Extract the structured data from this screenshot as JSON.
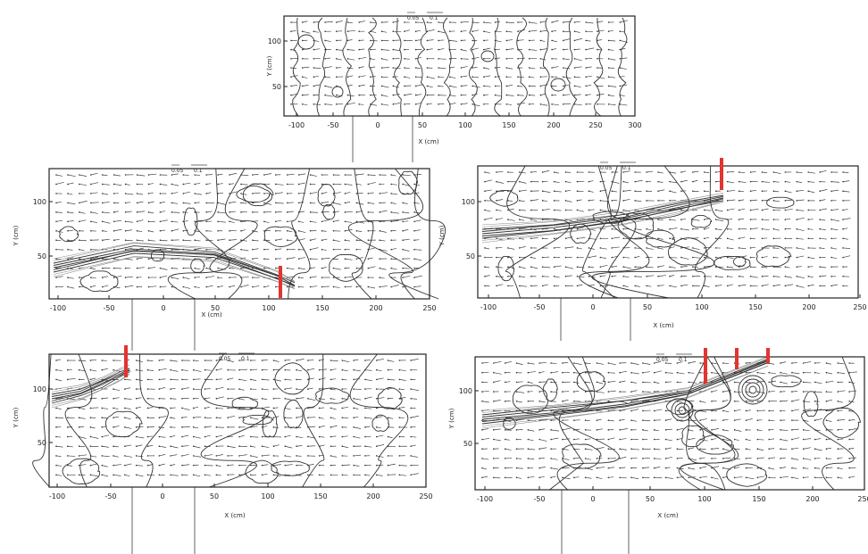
{
  "panels": [
    {
      "id": "top",
      "x_label": "X (cm)",
      "y_label": "Y (cm)",
      "x_ticks": [
        "-100",
        "-50",
        "0",
        "50",
        "100",
        "150",
        "200",
        "250",
        "300"
      ],
      "y_ticks": [
        "100",
        "50"
      ],
      "scale_labels": [
        "0.05",
        "0.1"
      ]
    },
    {
      "id": "middle-left",
      "x_label": "X (cm)",
      "y_label": "Y (cm)",
      "x_ticks": [
        "-100",
        "-50",
        "0",
        "50",
        "100",
        "150",
        "200",
        "250"
      ],
      "y_ticks": [
        "100",
        "50"
      ],
      "scale_labels": [
        "0.05",
        "0.1"
      ]
    },
    {
      "id": "middle-right",
      "x_label": "X (cm)",
      "y_label": "Y (cm)",
      "x_ticks": [
        "-100",
        "-50",
        "0",
        "50",
        "100",
        "150",
        "200",
        "250"
      ],
      "y_ticks": [
        "100",
        "50"
      ],
      "scale_labels": [
        "0.05",
        "0.1"
      ]
    },
    {
      "id": "bottom-left",
      "x_label": "X (cm)",
      "y_label": "Y (cm)",
      "x_ticks": [
        "-100",
        "-50",
        "0",
        "50",
        "100",
        "150",
        "200",
        "250"
      ],
      "y_ticks": [
        "100",
        "50"
      ],
      "scale_labels": [
        "0.05",
        "0.1"
      ]
    },
    {
      "id": "bottom-right",
      "x_label": "X (cm)",
      "y_label": "Y (cm)",
      "x_ticks": [
        "-100",
        "-50",
        "0",
        "50",
        "100",
        "150",
        "200",
        "250"
      ],
      "y_ticks": [
        "100",
        "50"
      ],
      "scale_labels": [
        "0.05",
        "0.1"
      ]
    }
  ],
  "colors": {
    "gate_marker": "#e3342f",
    "contour": "#333333",
    "vector": "#444444"
  }
}
